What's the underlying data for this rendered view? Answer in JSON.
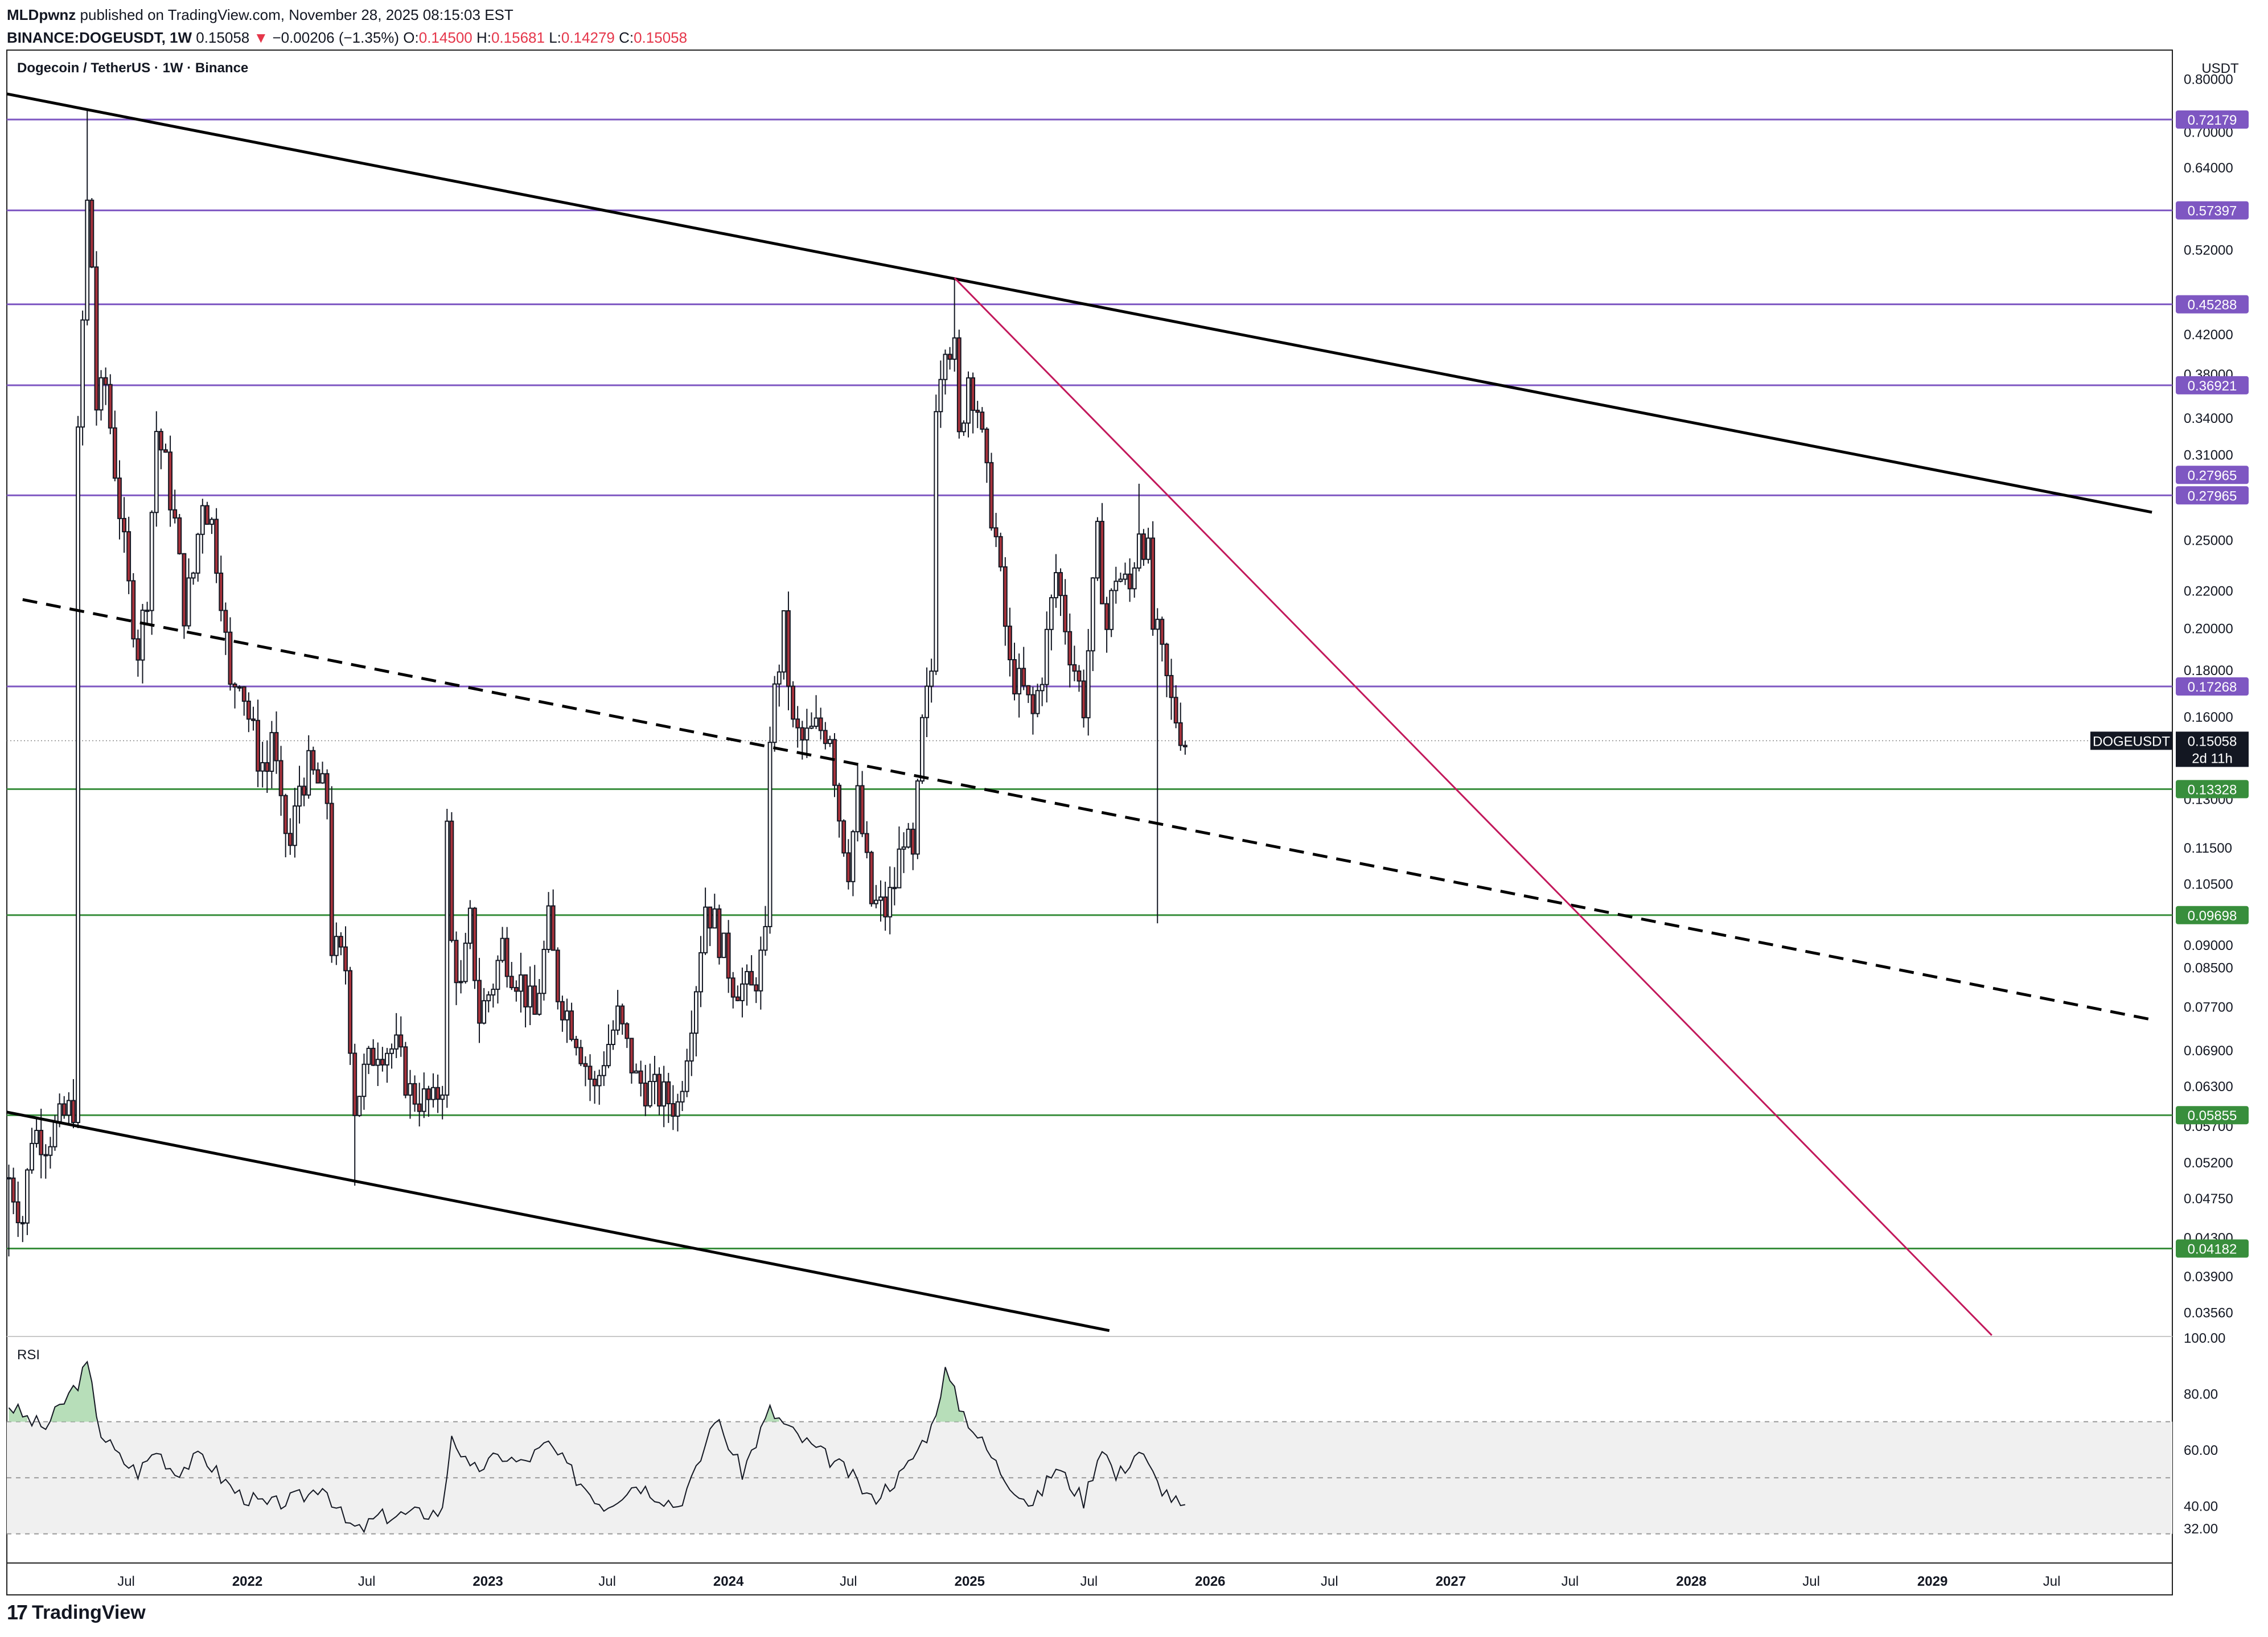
{
  "header": {
    "publisher": "MLDpwnz",
    "published_text": "published on TradingView.com, November 28, 2025 08:15:03 EST",
    "symbol": "BINANCE:DOGEUSDT, 1W",
    "last": "0.15058",
    "change_arrow": "▼",
    "change": "−0.00206 (−1.35%)",
    "o_label": "O:",
    "o": "0.14500",
    "h_label": "H:",
    "h": "0.15681",
    "l_label": "L:",
    "l": "0.14279",
    "c_label": "C:",
    "c": "0.15058"
  },
  "pane_title": "Dogecoin / TetherUS · 1W · Binance",
  "currency": "USDT",
  "rsi_label": "RSI",
  "footer": {
    "brand": "TradingView",
    "mark": "17"
  },
  "colors": {
    "up": "#ffffff",
    "down": "#a8323b",
    "wick": "#131722",
    "purple": "#7e57c2",
    "green": "#388e3c",
    "magenta": "#c2185b",
    "trend": "#000000",
    "rsi_line": "#131722",
    "rsi_band": "#f0f0f0"
  },
  "chart_data": {
    "type": "candlestick",
    "symbol": "DOGEUSDT",
    "timeframe": "1W",
    "x_range": [
      "2021-01-01",
      "2029-12-31"
    ],
    "y_scale": "log",
    "y_range": [
      0.0335,
      0.86
    ],
    "y_ticks": [
      "0.80000",
      "0.70000",
      "0.64000",
      "0.52000",
      "0.42000",
      "0.38000",
      "0.34000",
      "0.31000",
      "0.25000",
      "0.22000",
      "0.20000",
      "0.18000",
      "0.16000",
      "0.13000",
      "0.11500",
      "0.10500",
      "0.09000",
      "0.08500",
      "0.07700",
      "0.06900",
      "0.06300",
      "0.05700",
      "0.05200",
      "0.04750",
      "0.04300",
      "0.03900",
      "0.03560"
    ],
    "x_ticks": [
      {
        "label": "Jul",
        "date": "2021-07-01"
      },
      {
        "label": "2022",
        "date": "2022-01-01"
      },
      {
        "label": "Jul",
        "date": "2022-07-01"
      },
      {
        "label": "2023",
        "date": "2023-01-01"
      },
      {
        "label": "Jul",
        "date": "2023-07-01"
      },
      {
        "label": "2024",
        "date": "2024-01-01"
      },
      {
        "label": "Jul",
        "date": "2024-07-01"
      },
      {
        "label": "2025",
        "date": "2025-01-01"
      },
      {
        "label": "Jul",
        "date": "2025-07-01"
      },
      {
        "label": "2026",
        "date": "2026-01-01"
      },
      {
        "label": "Jul",
        "date": "2026-07-01"
      },
      {
        "label": "2027",
        "date": "2027-01-01"
      },
      {
        "label": "Jul",
        "date": "2027-07-01"
      },
      {
        "label": "2028",
        "date": "2028-01-01"
      },
      {
        "label": "Jul",
        "date": "2028-07-01"
      },
      {
        "label": "2029",
        "date": "2029-01-01"
      },
      {
        "label": "Jul",
        "date": "2029-07-01"
      }
    ],
    "close_keypoints": [
      [
        "2021-01-04",
        0.05
      ],
      [
        "2021-01-25",
        0.045
      ],
      [
        "2021-02-08",
        0.056
      ],
      [
        "2021-02-15",
        0.056
      ],
      [
        "2021-03-01",
        0.055
      ],
      [
        "2021-04-12",
        0.06
      ],
      [
        "2021-04-19",
        0.32
      ],
      [
        "2021-05-03",
        0.58
      ],
      [
        "2021-05-10",
        0.5
      ],
      [
        "2021-05-17",
        0.35
      ],
      [
        "2021-05-31",
        0.37
      ],
      [
        "2021-06-14",
        0.3
      ],
      [
        "2021-06-21",
        0.27
      ],
      [
        "2021-07-05",
        0.22
      ],
      [
        "2021-07-19",
        0.19
      ],
      [
        "2021-08-02",
        0.22
      ],
      [
        "2021-08-16",
        0.33
      ],
      [
        "2021-08-30",
        0.3
      ],
      [
        "2021-09-13",
        0.26
      ],
      [
        "2021-09-27",
        0.21
      ],
      [
        "2021-10-11",
        0.23
      ],
      [
        "2021-10-25",
        0.28
      ],
      [
        "2021-11-08",
        0.26
      ],
      [
        "2021-11-22",
        0.22
      ],
      [
        "2021-12-06",
        0.17
      ],
      [
        "2021-12-20",
        0.18
      ],
      [
        "2022-01-03",
        0.16
      ],
      [
        "2022-01-17",
        0.145
      ],
      [
        "2022-01-31",
        0.14
      ],
      [
        "2022-02-07",
        0.155
      ],
      [
        "2022-02-21",
        0.125
      ],
      [
        "2022-03-07",
        0.115
      ],
      [
        "2022-03-21",
        0.135
      ],
      [
        "2022-04-04",
        0.14
      ],
      [
        "2022-04-18",
        0.135
      ],
      [
        "2022-05-02",
        0.13
      ],
      [
        "2022-05-09",
        0.09
      ],
      [
        "2022-05-30",
        0.085
      ],
      [
        "2022-06-13",
        0.06
      ],
      [
        "2022-06-27",
        0.065
      ],
      [
        "2022-07-18",
        0.07
      ],
      [
        "2022-08-15",
        0.069
      ],
      [
        "2022-09-05",
        0.062
      ],
      [
        "2022-10-10",
        0.06
      ],
      [
        "2022-10-24",
        0.064
      ],
      [
        "2022-10-31",
        0.12
      ],
      [
        "2022-11-07",
        0.09
      ],
      [
        "2022-11-21",
        0.08
      ],
      [
        "2022-12-05",
        0.095
      ],
      [
        "2022-12-19",
        0.075
      ],
      [
        "2023-01-09",
        0.082
      ],
      [
        "2023-01-23",
        0.09
      ],
      [
        "2023-02-06",
        0.085
      ],
      [
        "2023-02-20",
        0.082
      ],
      [
        "2023-03-13",
        0.075
      ],
      [
        "2023-04-03",
        0.095
      ],
      [
        "2023-04-17",
        0.08
      ],
      [
        "2023-05-15",
        0.072
      ],
      [
        "2023-06-12",
        0.062
      ],
      [
        "2023-06-26",
        0.068
      ],
      [
        "2023-07-17",
        0.075
      ],
      [
        "2023-08-14",
        0.064
      ],
      [
        "2023-09-11",
        0.062
      ],
      [
        "2023-10-16",
        0.06
      ],
      [
        "2023-10-30",
        0.07
      ],
      [
        "2023-11-13",
        0.082
      ],
      [
        "2023-11-27",
        0.1
      ],
      [
        "2023-12-11",
        0.095
      ],
      [
        "2024-01-08",
        0.082
      ],
      [
        "2024-02-05",
        0.08
      ],
      [
        "2024-02-26",
        0.09
      ],
      [
        "2024-03-04",
        0.155
      ],
      [
        "2024-03-25",
        0.2
      ],
      [
        "2024-04-08",
        0.155
      ],
      [
        "2024-04-22",
        0.15
      ],
      [
        "2024-05-13",
        0.155
      ],
      [
        "2024-06-03",
        0.155
      ],
      [
        "2024-06-17",
        0.125
      ],
      [
        "2024-07-01",
        0.11
      ],
      [
        "2024-07-15",
        0.13
      ],
      [
        "2024-08-05",
        0.1
      ],
      [
        "2024-08-26",
        0.098
      ],
      [
        "2024-09-09",
        0.105
      ],
      [
        "2024-09-23",
        0.12
      ],
      [
        "2024-10-07",
        0.11
      ],
      [
        "2024-10-21",
        0.155
      ],
      [
        "2024-11-04",
        0.18
      ],
      [
        "2024-11-11",
        0.36
      ],
      [
        "2024-11-25",
        0.42
      ],
      [
        "2024-12-09",
        0.4
      ],
      [
        "2024-12-16",
        0.32
      ],
      [
        "2024-12-30",
        0.38
      ],
      [
        "2025-01-13",
        0.35
      ],
      [
        "2025-01-27",
        0.29
      ],
      [
        "2025-02-10",
        0.25
      ],
      [
        "2025-03-03",
        0.18
      ],
      [
        "2025-03-24",
        0.17
      ],
      [
        "2025-04-07",
        0.16
      ],
      [
        "2025-04-21",
        0.18
      ],
      [
        "2025-05-12",
        0.23
      ],
      [
        "2025-06-02",
        0.19
      ],
      [
        "2025-06-23",
        0.165
      ],
      [
        "2025-07-14",
        0.25
      ],
      [
        "2025-07-28",
        0.2
      ],
      [
        "2025-08-11",
        0.23
      ],
      [
        "2025-09-01",
        0.22
      ],
      [
        "2025-09-15",
        0.26
      ],
      [
        "2025-09-29",
        0.24
      ],
      [
        "2025-10-06",
        0.2
      ],
      [
        "2025-10-13",
        0.195
      ],
      [
        "2025-11-03",
        0.165
      ],
      [
        "2025-11-17",
        0.155
      ],
      [
        "2025-11-24",
        0.15058
      ]
    ],
    "wick_extremes": [
      [
        "2021-05-03",
        "high",
        0.74
      ],
      [
        "2024-12-09",
        "high",
        0.484
      ],
      [
        "2025-09-15",
        "high",
        0.288
      ],
      [
        "2025-10-13",
        "low",
        0.095
      ],
      [
        "2022-06-13",
        "low",
        0.049
      ],
      [
        "2021-01-04",
        "low",
        0.041
      ]
    ],
    "horizontal_levels": [
      {
        "price": 0.72179,
        "label": "0.72179",
        "color": "purple"
      },
      {
        "price": 0.57397,
        "label": "0.57397",
        "color": "purple"
      },
      {
        "price": 0.45288,
        "label": "0.45288",
        "color": "purple"
      },
      {
        "price": 0.36921,
        "label": "0.36921",
        "color": "purple"
      },
      {
        "price": 0.27965,
        "label": "0.27965",
        "color": "purple"
      },
      {
        "price": 0.17268,
        "label": "0.17268",
        "color": "purple"
      },
      {
        "price": 0.13328,
        "label": "0.13328",
        "color": "green"
      },
      {
        "price": 0.09698,
        "label": "0.09698",
        "color": "green"
      },
      {
        "price": 0.05855,
        "label": "0.05855",
        "color": "green"
      },
      {
        "price": 0.04182,
        "label": "0.04182",
        "color": "green"
      }
    ],
    "extra_price_label": "0.27965",
    "last_price_tag": {
      "symbol": "DOGEUSDT",
      "price": "0.15058",
      "countdown": "2d 11h"
    },
    "trendlines": [
      {
        "style": "solid",
        "color": "trend",
        "from": [
          "2021-01-01",
          0.77
        ],
        "to": [
          "2029-11-30",
          0.268
        ]
      },
      {
        "style": "solid",
        "color": "trend",
        "from": [
          "2021-01-01",
          0.059
        ],
        "to": [
          "2025-08-01",
          0.034
        ]
      },
      {
        "style": "dashed",
        "color": "trend",
        "from": [
          "2021-01-25",
          0.215
        ],
        "to": [
          "2029-11-30",
          0.0745
        ]
      },
      {
        "style": "solid",
        "color": "magenta",
        "from": [
          "2024-12-09",
          0.484
        ],
        "to": [
          "2029-04-01",
          0.0336
        ]
      }
    ],
    "rsi": {
      "range": [
        20,
        100
      ],
      "ticks": [
        "100.00",
        "80.00",
        "60.00",
        "40.00",
        "32.00"
      ],
      "band": [
        30,
        70
      ],
      "mid": 50,
      "keypoints": [
        [
          "2021-01-04",
          76
        ],
        [
          "2021-02-08",
          70
        ],
        [
          "2021-03-01",
          68
        ],
        [
          "2021-04-19",
          84
        ],
        [
          "2021-05-03",
          90
        ],
        [
          "2021-05-24",
          66
        ],
        [
          "2021-06-21",
          57
        ],
        [
          "2021-07-19",
          52
        ],
        [
          "2021-08-16",
          60
        ],
        [
          "2021-09-13",
          52
        ],
        [
          "2021-10-25",
          58
        ],
        [
          "2021-11-22",
          50
        ],
        [
          "2021-12-20",
          44
        ],
        [
          "2022-01-31",
          40
        ],
        [
          "2022-03-07",
          42
        ],
        [
          "2022-04-04",
          44
        ],
        [
          "2022-04-25",
          48
        ],
        [
          "2022-05-30",
          34
        ],
        [
          "2022-06-20",
          31
        ],
        [
          "2022-07-18",
          36
        ],
        [
          "2022-09-05",
          37
        ],
        [
          "2022-10-24",
          38
        ],
        [
          "2022-11-07",
          66
        ],
        [
          "2022-12-05",
          52
        ],
        [
          "2023-01-23",
          58
        ],
        [
          "2023-02-20",
          55
        ],
        [
          "2023-04-03",
          62
        ],
        [
          "2023-05-15",
          50
        ],
        [
          "2023-06-26",
          40
        ],
        [
          "2023-08-14",
          48
        ],
        [
          "2023-10-16",
          40
        ],
        [
          "2023-11-13",
          52
        ],
        [
          "2023-12-11",
          72
        ],
        [
          "2024-01-22",
          52
        ],
        [
          "2024-03-04",
          74
        ],
        [
          "2024-04-08",
          66
        ],
        [
          "2024-05-13",
          60
        ],
        [
          "2024-07-01",
          52
        ],
        [
          "2024-08-05",
          42
        ],
        [
          "2024-09-23",
          52
        ],
        [
          "2024-11-04",
          68
        ],
        [
          "2024-11-25",
          88
        ],
        [
          "2024-12-16",
          76
        ],
        [
          "2025-01-13",
          65
        ],
        [
          "2025-02-24",
          50
        ],
        [
          "2025-04-07",
          40
        ],
        [
          "2025-05-12",
          54
        ],
        [
          "2025-06-23",
          42
        ],
        [
          "2025-07-21",
          62
        ],
        [
          "2025-08-11",
          50
        ],
        [
          "2025-09-15",
          60
        ],
        [
          "2025-10-13",
          48
        ],
        [
          "2025-11-24",
          38
        ]
      ]
    }
  }
}
